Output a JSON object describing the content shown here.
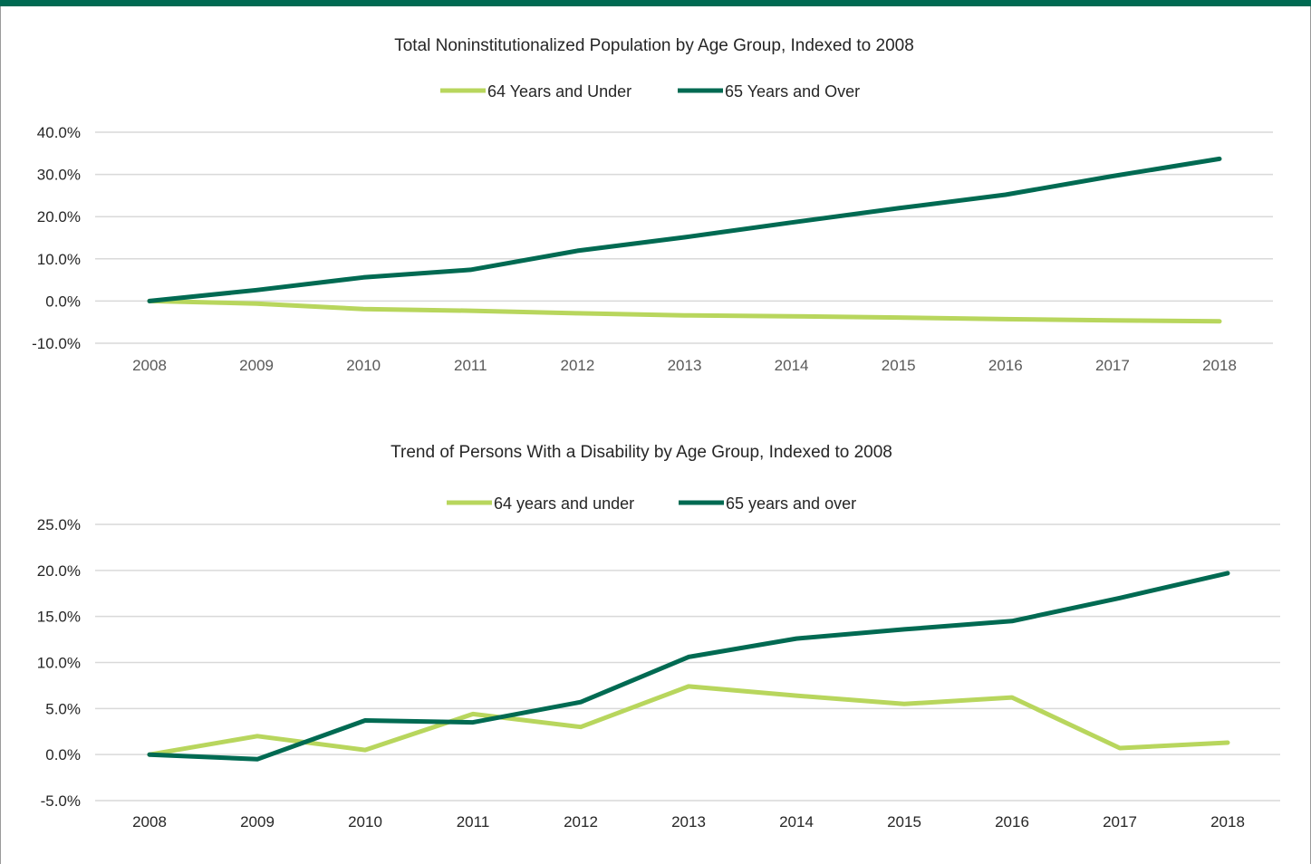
{
  "colors": {
    "accent": "#006a52",
    "light_series": "#b8d65d",
    "dark_series": "#006a52"
  },
  "chart_data": [
    {
      "type": "line",
      "title": "Total Noninstitutionalized Population by Age Group, Indexed to 2008",
      "x": [
        "2008",
        "2009",
        "2010",
        "2011",
        "2012",
        "2013",
        "2014",
        "2015",
        "2016",
        "2017",
        "2018"
      ],
      "y_ticks": [
        "40.0%",
        "30.0%",
        "20.0%",
        "10.0%",
        "0.0%",
        "-10.0%"
      ],
      "ylim": [
        -10,
        40
      ],
      "grid": true,
      "legend_position": "top",
      "series": [
        {
          "name": "64 Years and Under",
          "color": "#b8d65d",
          "values": [
            0.0,
            -0.6,
            -1.9,
            -2.3,
            -2.9,
            -3.4,
            -3.6,
            -3.9,
            -4.3,
            -4.6,
            -4.8
          ]
        },
        {
          "name": "65 Years and Over",
          "color": "#006a52",
          "values": [
            0.0,
            2.6,
            5.6,
            7.4,
            11.9,
            15.1,
            18.6,
            22.0,
            25.2,
            29.6,
            33.7
          ]
        }
      ]
    },
    {
      "type": "line",
      "title": "Trend of Persons With a Disability by Age Group, Indexed to 2008",
      "x": [
        "2008",
        "2009",
        "2010",
        "2011",
        "2012",
        "2013",
        "2014",
        "2015",
        "2016",
        "2017",
        "2018"
      ],
      "y_ticks": [
        "25.0%",
        "20.0%",
        "15.0%",
        "10.0%",
        "5.0%",
        "0.0%",
        "-5.0%"
      ],
      "ylim": [
        -5,
        25
      ],
      "grid": true,
      "legend_position": "top",
      "series": [
        {
          "name": "64 years and under",
          "color": "#b8d65d",
          "values": [
            0.0,
            2.0,
            0.5,
            4.4,
            3.0,
            7.4,
            6.4,
            5.5,
            6.2,
            0.7,
            1.3
          ]
        },
        {
          "name": "65 years and over",
          "color": "#006a52",
          "values": [
            0.0,
            -0.5,
            3.7,
            3.5,
            5.7,
            10.6,
            12.6,
            13.6,
            14.5,
            17.0,
            19.7
          ]
        }
      ]
    }
  ]
}
